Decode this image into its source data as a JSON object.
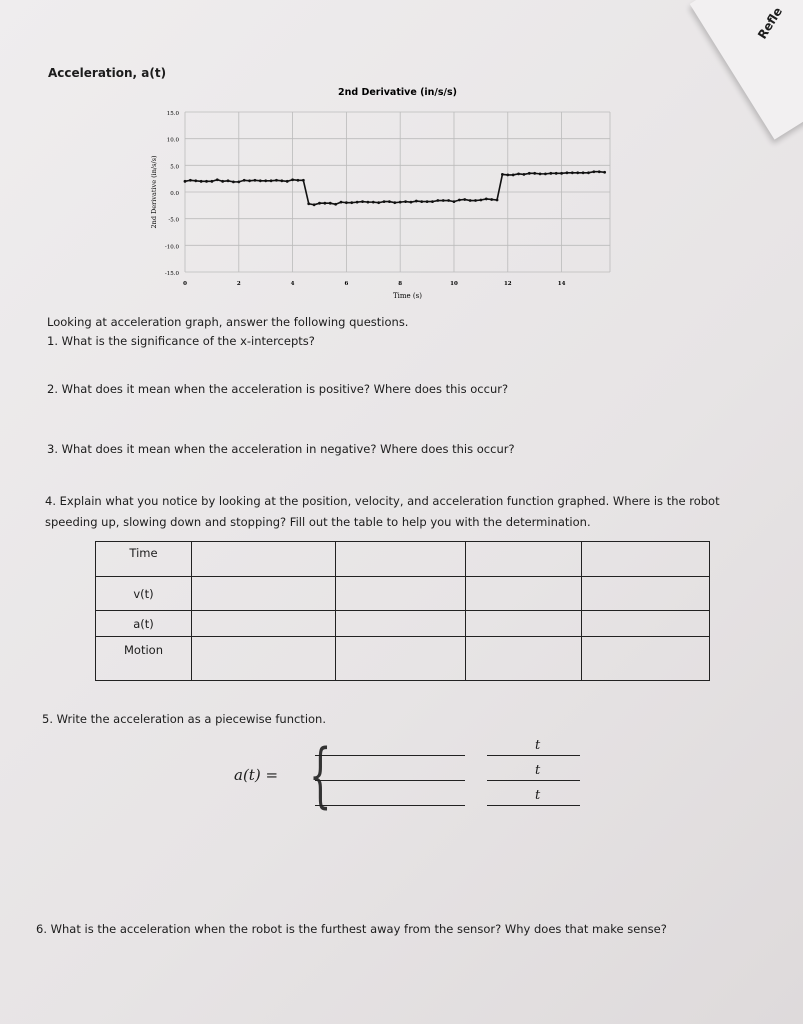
{
  "corner_label": "Refle",
  "section_title": "Acceleration, a(t)",
  "chart_data": {
    "type": "line",
    "title": "2nd Derivative (in/s/s)",
    "xlabel": "Time (s)",
    "ylabel": "2nd Derivative (in/s/s)",
    "xlim": [
      0,
      15.8
    ],
    "ylim": [
      -15,
      15
    ],
    "xticks": [
      0,
      2,
      4,
      6,
      8,
      10,
      12,
      14
    ],
    "yticks": [
      "15.0",
      "10.0",
      "5.0",
      "0.0",
      "-5.0",
      "-10.0",
      "-15.0"
    ],
    "grid": true,
    "markers": true,
    "x": [
      0,
      0.2,
      0.4,
      0.6,
      0.8,
      1.0,
      1.2,
      1.4,
      1.6,
      1.8,
      2.0,
      2.2,
      2.4,
      2.6,
      2.8,
      3.0,
      3.2,
      3.4,
      3.6,
      3.8,
      4.0,
      4.2,
      4.4,
      4.6,
      4.8,
      5.0,
      5.2,
      5.4,
      5.6,
      5.8,
      6.0,
      6.2,
      6.4,
      6.6,
      6.8,
      7.0,
      7.2,
      7.4,
      7.6,
      7.8,
      8.0,
      8.2,
      8.4,
      8.6,
      8.8,
      9.0,
      9.2,
      9.4,
      9.6,
      9.8,
      10.0,
      10.2,
      10.4,
      10.6,
      10.8,
      11.0,
      11.2,
      11.4,
      11.6,
      11.8,
      12.0,
      12.2,
      12.4,
      12.6,
      12.8,
      13.0,
      13.2,
      13.4,
      13.6,
      13.8,
      14.0,
      14.2,
      14.4,
      14.6,
      14.8,
      15.0,
      15.2,
      15.4,
      15.6
    ],
    "y": [
      2.0,
      2.2,
      2.1,
      2.0,
      2.0,
      2.0,
      2.3,
      2.0,
      2.1,
      1.9,
      1.9,
      2.2,
      2.1,
      2.2,
      2.1,
      2.1,
      2.1,
      2.2,
      2.1,
      2.0,
      2.3,
      2.2,
      2.2,
      -2.2,
      -2.4,
      -2.1,
      -2.1,
      -2.1,
      -2.3,
      -1.9,
      -2.0,
      -2.0,
      -1.9,
      -1.8,
      -1.9,
      -1.9,
      -2.0,
      -1.8,
      -1.8,
      -2.0,
      -1.9,
      -1.8,
      -1.9,
      -1.7,
      -1.8,
      -1.8,
      -1.8,
      -1.6,
      -1.6,
      -1.6,
      -1.8,
      -1.5,
      -1.4,
      -1.6,
      -1.6,
      -1.5,
      -1.3,
      -1.4,
      -1.5,
      3.3,
      3.2,
      3.2,
      3.4,
      3.3,
      3.5,
      3.5,
      3.4,
      3.4,
      3.5,
      3.5,
      3.5,
      3.6,
      3.6,
      3.6,
      3.6,
      3.6,
      3.8,
      3.8,
      3.7
    ]
  },
  "questions": {
    "intro": "Looking at acceleration graph, answer the following questions.",
    "q1": "1. What is the significance of the x-intercepts?",
    "q2": "2. What does it mean when the acceleration is positive? Where does this occur?",
    "q3": "3. What does it mean when the acceleration in negative? Where does this occur?",
    "q4_line1": "4. Explain what you notice by looking at the position, velocity, and acceleration function graphed. Where is the robot",
    "q4_line2": "speeding up, slowing down and stopping? Fill out the table to help you with the determination.",
    "q5": "5. Write the acceleration as a piecewise function.",
    "q6": "6. What is the acceleration when the robot is the furthest away from the sensor? Why does that make sense?"
  },
  "table": {
    "rows": [
      "Time",
      "v(t)",
      "a(t)",
      "Motion"
    ]
  },
  "piecewise": {
    "lhs": "a(t) =",
    "var": "t"
  }
}
